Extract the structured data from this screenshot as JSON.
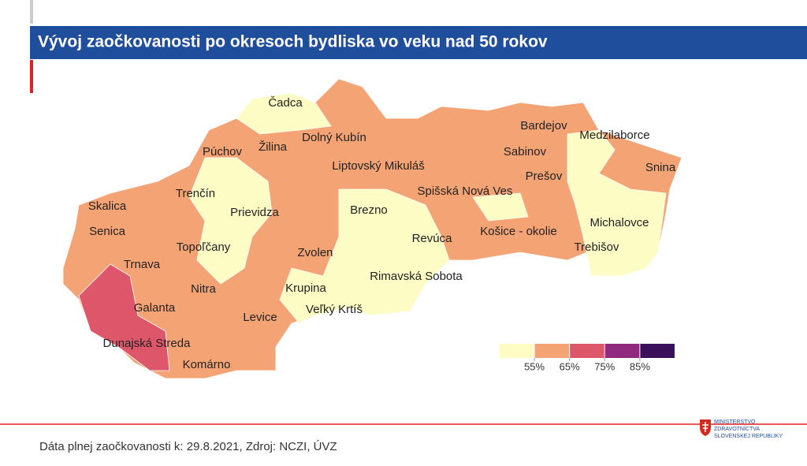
{
  "header": {
    "title": "Vývoj zaočkovanosti po okresoch bydliska vo veku nad 50 rokov"
  },
  "map": {
    "labels": [
      "Čadca",
      "Dolný Kubín",
      "Púchov",
      "Žilina",
      "Bardejov",
      "Medzilaborce",
      "Sabinov",
      "Liptovský Mikuláš",
      "Snina",
      "Prešov",
      "Trenčín",
      "Spišská Nová Ves",
      "Skalica",
      "Prievidza",
      "Brezno",
      "Michalovce",
      "Senica",
      "Košice - okolie",
      "Revúca",
      "Topoľčany",
      "Trebišov",
      "Zvolen",
      "Trnava",
      "Rimavská Sobota",
      "Krupina",
      "Nitra",
      "Galanta",
      "Veľký Krtíš",
      "Levice",
      "Dunajská Streda",
      "Komárno"
    ],
    "legend": {
      "colors": [
        "#fcfcc4",
        "#f4a474",
        "#de566a",
        "#8f2a7e",
        "#3a0f5c"
      ],
      "ticks": [
        {
          "value": 55,
          "label": "55%"
        },
        {
          "value": 65,
          "label": "65%"
        },
        {
          "value": 75,
          "label": "75%"
        },
        {
          "value": 85,
          "label": "85%"
        }
      ]
    }
  },
  "footer": {
    "source": "Dáta plnej zaočkovanosti k: 29.8.2021, Zdroj: NCZI, ÚVZ",
    "logo": [
      "MINISTERSTVO",
      "ZDRAVOTNÍCTVA",
      "SLOVENSKEJ REPUBLIKY"
    ]
  }
}
